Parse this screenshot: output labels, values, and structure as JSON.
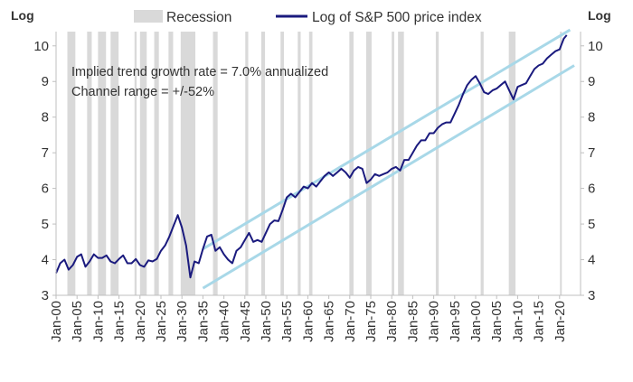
{
  "chart_data": {
    "type": "line",
    "title": "",
    "left_axis_label": "Log",
    "right_axis_label": "Log",
    "ylim": [
      3,
      10.4
    ],
    "yticks": [
      3,
      4,
      5,
      6,
      7,
      8,
      9,
      10
    ],
    "xlim": [
      1900,
      2025
    ],
    "xtick_years": [
      1900,
      1905,
      1910,
      1915,
      1920,
      1925,
      1930,
      1935,
      1940,
      1945,
      1950,
      1955,
      1960,
      1965,
      1970,
      1975,
      1980,
      1985,
      1990,
      1995,
      2000,
      2005,
      2010,
      2015,
      2020
    ],
    "xtick_labels": [
      "Jan-00",
      "Jan-05",
      "Jan-10",
      "Jan-15",
      "Jan-20",
      "Jan-25",
      "Jan-30",
      "Jan-35",
      "Jan-40",
      "Jan-45",
      "Jan-50",
      "Jan-55",
      "Jan-60",
      "Jan-65",
      "Jan-70",
      "Jan-75",
      "Jan-80",
      "Jan-85",
      "Jan-90",
      "Jan-95",
      "Jan-00",
      "Jan-05",
      "Jan-10",
      "Jan-15",
      "Jan-20"
    ],
    "grid": false,
    "legend": {
      "placement": "top",
      "entries": [
        {
          "label": "Recession",
          "kind": "band",
          "color": "#d9d9d9"
        },
        {
          "label": "Log of S&P 500 price index",
          "kind": "line",
          "color": "#1a1a7e"
        }
      ]
    },
    "annotations": [
      "Implied trend growth rate = 7.0% annualized",
      "Channel range = +/-52%"
    ],
    "recessions": [
      [
        1902.7,
        1904.6
      ],
      [
        1907.4,
        1908.5
      ],
      [
        1910.0,
        1911.9
      ],
      [
        1913.0,
        1914.9
      ],
      [
        1918.7,
        1919.2
      ],
      [
        1920.0,
        1921.6
      ],
      [
        1923.4,
        1924.5
      ],
      [
        1926.8,
        1927.9
      ],
      [
        1929.7,
        1933.2
      ],
      [
        1937.4,
        1938.5
      ],
      [
        1945.1,
        1945.8
      ],
      [
        1948.9,
        1949.8
      ],
      [
        1953.5,
        1954.3
      ],
      [
        1957.6,
        1958.3
      ],
      [
        1960.3,
        1961.1
      ],
      [
        1969.9,
        1970.9
      ],
      [
        1973.9,
        1975.2
      ],
      [
        1980.0,
        1980.6
      ],
      [
        1981.5,
        1982.9
      ],
      [
        1990.5,
        1991.2
      ],
      [
        2001.2,
        2001.9
      ],
      [
        2007.9,
        2009.5
      ],
      [
        2020.1,
        2020.4
      ]
    ],
    "channel": {
      "color": "#a8d8e8",
      "upper": [
        {
          "x": 1935,
          "y": 4.3
        },
        {
          "x": 2022.5,
          "y": 10.45
        }
      ],
      "lower": [
        {
          "x": 1935,
          "y": 3.2
        },
        {
          "x": 2023.5,
          "y": 9.45
        }
      ]
    },
    "series": [
      {
        "color": "#1a1a7e",
        "points": [
          [
            1900,
            3.62
          ],
          [
            1901,
            3.9
          ],
          [
            1902,
            4.0
          ],
          [
            1903,
            3.72
          ],
          [
            1904,
            3.85
          ],
          [
            1905,
            4.08
          ],
          [
            1906,
            4.15
          ],
          [
            1907,
            3.8
          ],
          [
            1908,
            3.95
          ],
          [
            1909,
            4.15
          ],
          [
            1910,
            4.05
          ],
          [
            1911,
            4.05
          ],
          [
            1912,
            4.12
          ],
          [
            1913,
            3.95
          ],
          [
            1914,
            3.9
          ],
          [
            1915,
            4.02
          ],
          [
            1916,
            4.12
          ],
          [
            1917,
            3.9
          ],
          [
            1918,
            3.9
          ],
          [
            1919,
            4.02
          ],
          [
            1920,
            3.85
          ],
          [
            1921,
            3.8
          ],
          [
            1922,
            3.98
          ],
          [
            1923,
            3.95
          ],
          [
            1924,
            4.02
          ],
          [
            1925,
            4.25
          ],
          [
            1926,
            4.4
          ],
          [
            1927,
            4.65
          ],
          [
            1928,
            4.95
          ],
          [
            1929,
            5.25
          ],
          [
            1930,
            4.9
          ],
          [
            1931,
            4.4
          ],
          [
            1932,
            3.5
          ],
          [
            1933,
            3.95
          ],
          [
            1934,
            3.9
          ],
          [
            1935,
            4.3
          ],
          [
            1936,
            4.65
          ],
          [
            1937,
            4.7
          ],
          [
            1938,
            4.25
          ],
          [
            1939,
            4.35
          ],
          [
            1940,
            4.15
          ],
          [
            1941,
            4.0
          ],
          [
            1942,
            3.9
          ],
          [
            1943,
            4.25
          ],
          [
            1944,
            4.35
          ],
          [
            1945,
            4.55
          ],
          [
            1946,
            4.75
          ],
          [
            1947,
            4.5
          ],
          [
            1948,
            4.55
          ],
          [
            1949,
            4.5
          ],
          [
            1950,
            4.75
          ],
          [
            1951,
            5.0
          ],
          [
            1952,
            5.1
          ],
          [
            1953,
            5.08
          ],
          [
            1954,
            5.4
          ],
          [
            1955,
            5.75
          ],
          [
            1956,
            5.85
          ],
          [
            1957,
            5.75
          ],
          [
            1958,
            5.9
          ],
          [
            1959,
            6.05
          ],
          [
            1960,
            6.0
          ],
          [
            1961,
            6.15
          ],
          [
            1962,
            6.05
          ],
          [
            1963,
            6.2
          ],
          [
            1964,
            6.35
          ],
          [
            1965,
            6.45
          ],
          [
            1966,
            6.35
          ],
          [
            1967,
            6.45
          ],
          [
            1968,
            6.55
          ],
          [
            1969,
            6.45
          ],
          [
            1970,
            6.3
          ],
          [
            1971,
            6.5
          ],
          [
            1972,
            6.6
          ],
          [
            1973,
            6.55
          ],
          [
            1974,
            6.15
          ],
          [
            1975,
            6.25
          ],
          [
            1976,
            6.4
          ],
          [
            1977,
            6.35
          ],
          [
            1978,
            6.4
          ],
          [
            1979,
            6.45
          ],
          [
            1980,
            6.55
          ],
          [
            1981,
            6.6
          ],
          [
            1982,
            6.5
          ],
          [
            1983,
            6.8
          ],
          [
            1984,
            6.8
          ],
          [
            1985,
            7.0
          ],
          [
            1986,
            7.2
          ],
          [
            1987,
            7.35
          ],
          [
            1988,
            7.35
          ],
          [
            1989,
            7.55
          ],
          [
            1990,
            7.55
          ],
          [
            1991,
            7.7
          ],
          [
            1992,
            7.8
          ],
          [
            1993,
            7.85
          ],
          [
            1994,
            7.85
          ],
          [
            1995,
            8.1
          ],
          [
            1996,
            8.35
          ],
          [
            1997,
            8.65
          ],
          [
            1998,
            8.9
          ],
          [
            1999,
            9.05
          ],
          [
            2000,
            9.15
          ],
          [
            2001,
            8.95
          ],
          [
            2002,
            8.7
          ],
          [
            2003,
            8.65
          ],
          [
            2004,
            8.75
          ],
          [
            2005,
            8.8
          ],
          [
            2006,
            8.9
          ],
          [
            2007,
            9.0
          ],
          [
            2008,
            8.75
          ],
          [
            2009,
            8.5
          ],
          [
            2010,
            8.85
          ],
          [
            2011,
            8.9
          ],
          [
            2012,
            8.95
          ],
          [
            2013,
            9.15
          ],
          [
            2014,
            9.35
          ],
          [
            2015,
            9.45
          ],
          [
            2016,
            9.5
          ],
          [
            2017,
            9.65
          ],
          [
            2018,
            9.75
          ],
          [
            2019,
            9.85
          ],
          [
            2020,
            9.9
          ],
          [
            2021,
            10.2
          ],
          [
            2021.7,
            10.3
          ]
        ]
      }
    ]
  }
}
